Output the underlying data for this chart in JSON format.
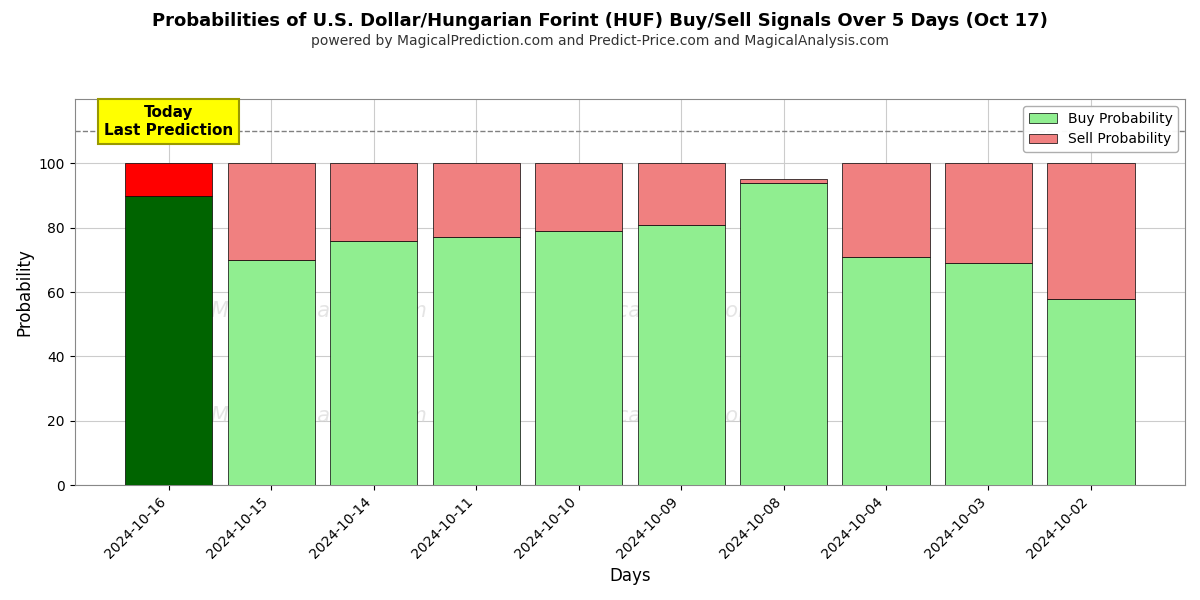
{
  "title": "Probabilities of U.S. Dollar/Hungarian Forint (HUF) Buy/Sell Signals Over 5 Days (Oct 17)",
  "subtitle": "powered by MagicalPrediction.com and Predict-Price.com and MagicalAnalysis.com",
  "xlabel": "Days",
  "ylabel": "Probability",
  "categories": [
    "2024-10-16",
    "2024-10-15",
    "2024-10-14",
    "2024-10-11",
    "2024-10-10",
    "2024-10-09",
    "2024-10-08",
    "2024-10-04",
    "2024-10-03",
    "2024-10-02"
  ],
  "buy_values": [
    90,
    70,
    76,
    77,
    79,
    81,
    94,
    71,
    69,
    58
  ],
  "sell_values": [
    10,
    30,
    24,
    23,
    21,
    19,
    1,
    29,
    31,
    42
  ],
  "today_bar_index": 0,
  "today_buy_color": "#006400",
  "today_sell_color": "#FF0000",
  "normal_buy_color": "#90EE90",
  "normal_sell_color": "#F08080",
  "today_label_bg": "#FFFF00",
  "today_label_text": "Today\nLast Prediction",
  "ylim": [
    0,
    120
  ],
  "yticks": [
    0,
    20,
    40,
    60,
    80,
    100
  ],
  "dashed_line_y": 110,
  "legend_buy_label": "Buy Probability",
  "legend_sell_label": "Sell Probability",
  "bar_width": 0.85,
  "background_color": "#ffffff",
  "grid_color": "#cccccc",
  "title_fontsize": 13,
  "subtitle_fontsize": 10
}
